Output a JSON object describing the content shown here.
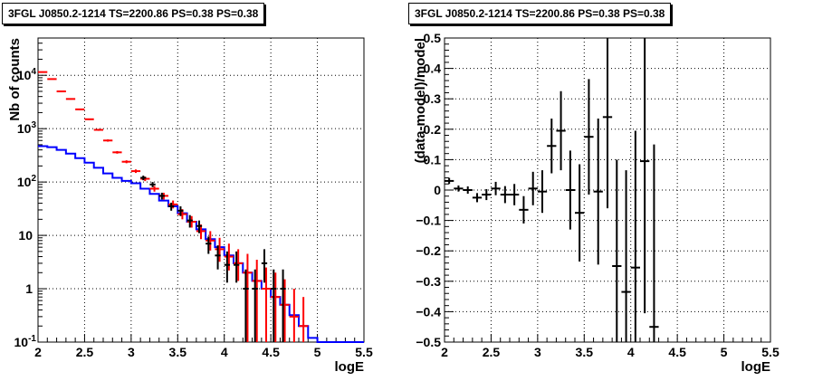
{
  "chart_data": [
    {
      "type": "histogram-log",
      "title": "3FGL J0850.2-1214 TS=2200.86 PS=0.38 PS=0.38",
      "xlabel": "logE",
      "ylabel": "Nb of counts",
      "xlim": [
        2,
        5.5
      ],
      "ylim": [
        0.1,
        50000
      ],
      "y_scale": "log",
      "grid": true,
      "x_ticks": [
        "2",
        "2.5",
        "3",
        "3.5",
        "4",
        "4.5",
        "5",
        "5.5"
      ],
      "y_ticks": [
        {
          "value": 0.1,
          "label": "10",
          "exp": "-1"
        },
        {
          "value": 1,
          "label": "1",
          "exp": ""
        },
        {
          "value": 10,
          "label": "10",
          "exp": ""
        },
        {
          "value": 100,
          "label": "10",
          "exp": "2"
        },
        {
          "value": 1000,
          "label": "10",
          "exp": "3"
        },
        {
          "value": 10000,
          "label": "10",
          "exp": "4"
        }
      ],
      "bin_width": 0.1,
      "model_color": "#0000ff",
      "total_color": "#ff0000",
      "data_color": "#000000",
      "model_bins": {
        "x": [
          2.05,
          2.15,
          2.25,
          2.35,
          2.45,
          2.55,
          2.65,
          2.75,
          2.85,
          2.95,
          3.05,
          3.15,
          3.25,
          3.35,
          3.45,
          3.55,
          3.65,
          3.75,
          3.85,
          3.95,
          4.05,
          4.15,
          4.25,
          4.35,
          4.45,
          4.55,
          4.65,
          4.75,
          4.85,
          4.95,
          5.05,
          5.15,
          5.25,
          5.35,
          5.45
        ],
        "y": [
          470,
          450,
          400,
          340,
          280,
          230,
          185,
          145,
          120,
          105,
          95,
          75,
          60,
          45,
          35,
          26,
          18,
          13,
          8.5,
          6,
          4.2,
          3,
          2,
          1.4,
          1,
          0.7,
          0.5,
          0.32,
          0.2,
          0.12,
          0.1,
          0.1,
          0.1,
          0.1,
          0.1
        ]
      },
      "total_points": {
        "x": [
          2.05,
          2.15,
          2.25,
          2.35,
          2.45,
          2.55,
          2.65,
          2.75,
          2.85,
          2.95,
          3.05,
          3.15,
          3.25,
          3.35,
          3.45,
          3.55,
          3.65,
          3.75,
          3.85,
          3.95,
          4.05,
          4.15,
          4.25,
          4.35,
          4.45,
          4.55,
          4.65,
          4.75,
          4.85
        ],
        "y": [
          11500,
          8500,
          5000,
          3600,
          2300,
          1500,
          950,
          600,
          360,
          240,
          160,
          115,
          75,
          55,
          38,
          25,
          18,
          12,
          8,
          5.5,
          4,
          3,
          2,
          1.4,
          1,
          0.7,
          0.5,
          0.3,
          0.2
        ],
        "yerr_low": [
          11200,
          8300,
          4850,
          3500,
          2230,
          1450,
          910,
          570,
          340,
          225,
          148,
          104,
          66,
          47,
          32,
          20,
          14,
          8.5,
          5.2,
          3.2,
          2.2,
          1.4,
          0.1,
          0.1,
          0.1,
          0.1,
          0.1,
          0.1,
          0.1
        ],
        "yerr_high": [
          11800,
          8700,
          5150,
          3700,
          2370,
          1550,
          990,
          630,
          380,
          255,
          172,
          126,
          84,
          63,
          45,
          31,
          23,
          16,
          12,
          9,
          7,
          5.5,
          4.5,
          3.5,
          2.5,
          2,
          1.5,
          1,
          0.7
        ]
      },
      "data_points": {
        "x": [
          3.15,
          3.25,
          3.35,
          3.45,
          3.55,
          3.65,
          3.75,
          3.85,
          3.95,
          4.05,
          4.15,
          4.25,
          4.35,
          4.45,
          4.55,
          4.65
        ],
        "y": [
          120,
          90,
          55,
          35,
          29,
          19,
          15,
          7,
          4.2,
          2.8,
          2.8,
          1,
          1,
          3,
          1,
          1
        ],
        "yerr_low": [
          108,
          80,
          47,
          29,
          23,
          14,
          11,
          4.5,
          2.3,
          1.3,
          1.3,
          0.1,
          0.1,
          1.3,
          0.1,
          0.1
        ],
        "yerr_high": [
          132,
          100,
          63,
          41,
          35,
          24,
          19,
          9.5,
          6.5,
          5,
          5,
          2.3,
          2.3,
          5.5,
          2.3,
          2.3
        ]
      }
    },
    {
      "type": "residuals",
      "title": "3FGL J0850.2-1214 TS=2200.86 PS=0.38 PS=0.38",
      "xlabel": "logE",
      "ylabel": "(data-model)/model",
      "xlim": [
        2,
        5.5
      ],
      "ylim": [
        -0.5,
        0.5
      ],
      "grid": true,
      "x_ticks": [
        "2",
        "2.5",
        "3",
        "3.5",
        "4",
        "4.5",
        "5",
        "5.5"
      ],
      "y_ticks": [
        "−0.5",
        "−0.4",
        "−0.3",
        "−0.2",
        "−0.1",
        "0",
        "0.1",
        "0.2",
        "0.3",
        "0.4",
        "0.5"
      ],
      "y_tick_values": [
        -0.5,
        -0.4,
        -0.3,
        -0.2,
        -0.1,
        0,
        0.1,
        0.2,
        0.3,
        0.4,
        0.5
      ],
      "bin_width": 0.1,
      "points": {
        "x": [
          2.05,
          2.15,
          2.25,
          2.35,
          2.45,
          2.55,
          2.65,
          2.75,
          2.85,
          2.95,
          3.05,
          3.15,
          3.25,
          3.35,
          3.45,
          3.55,
          3.65,
          3.75,
          3.85,
          3.95,
          4.05,
          4.15,
          4.25
        ],
        "y": [
          0.03,
          0.005,
          0.0,
          -0.025,
          -0.015,
          0.005,
          -0.015,
          -0.015,
          -0.065,
          0.005,
          -0.005,
          0.145,
          0.195,
          0.0,
          -0.075,
          0.175,
          -0.005,
          0.24,
          -0.25,
          -0.335,
          -0.255,
          0.095,
          -0.45
        ],
        "yerr": [
          0.01,
          0.01,
          0.012,
          0.015,
          0.018,
          0.022,
          0.028,
          0.035,
          0.045,
          0.055,
          0.07,
          0.09,
          0.13,
          0.13,
          0.16,
          0.19,
          0.24,
          0.3,
          0.35,
          0.4,
          0.45,
          0.5,
          0.6
        ]
      }
    }
  ]
}
